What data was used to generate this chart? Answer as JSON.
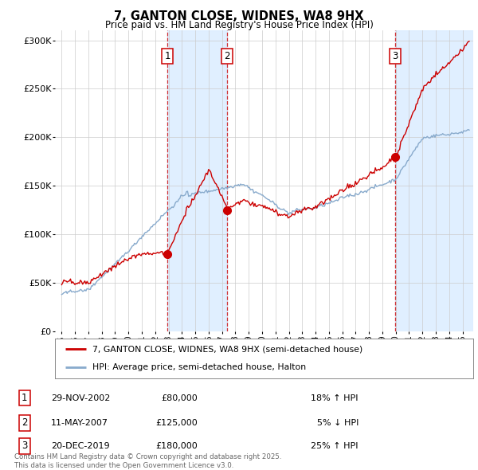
{
  "title": "7, GANTON CLOSE, WIDNES, WA8 9HX",
  "subtitle": "Price paid vs. HM Land Registry's House Price Index (HPI)",
  "line1_label": "7, GANTON CLOSE, WIDNES, WA8 9HX (semi-detached house)",
  "line2_label": "HPI: Average price, semi-detached house, Halton",
  "line1_color": "#cc0000",
  "line2_color": "#88aacc",
  "shade_color": "#ddeeff",
  "grid_color": "#cccccc",
  "background_color": "#ffffff",
  "transactions": [
    {
      "num": 1,
      "date_x": 2002.92,
      "price": 80000,
      "label": "1",
      "pct": "18% ↑ HPI",
      "date_str": "29-NOV-2002",
      "price_str": "£80,000"
    },
    {
      "num": 2,
      "date_x": 2007.37,
      "price": 125000,
      "label": "2",
      "pct": "5% ↓ HPI",
      "date_str": "11-MAY-2007",
      "price_str": "£125,000"
    },
    {
      "num": 3,
      "date_x": 2019.97,
      "price": 180000,
      "label": "3",
      "pct": "25% ↑ HPI",
      "date_str": "20-DEC-2019",
      "price_str": "£180,000"
    }
  ],
  "footer": "Contains HM Land Registry data © Crown copyright and database right 2025.\nThis data is licensed under the Open Government Licence v3.0.",
  "ylim": [
    0,
    310000
  ],
  "yticks": [
    0,
    50000,
    100000,
    150000,
    200000,
    250000,
    300000
  ],
  "ytick_labels": [
    "£0",
    "£50K",
    "£100K",
    "£150K",
    "£200K",
    "£250K",
    "£300K"
  ],
  "xlim_start": 1994.5,
  "xlim_end": 2025.8,
  "shade_alpha": 0.18
}
